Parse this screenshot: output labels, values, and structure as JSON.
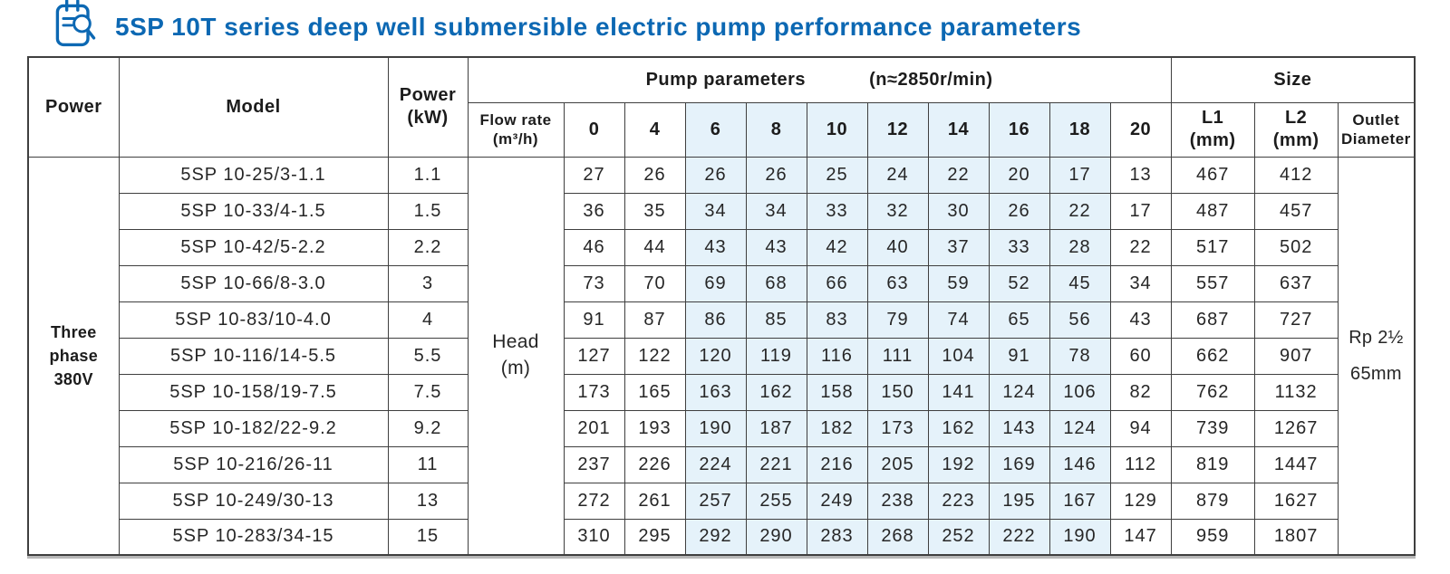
{
  "title": {
    "text": "5SP 10T series deep well submersible electric pump performance parameters",
    "icon": "clipboard-magnifier-icon"
  },
  "colors": {
    "accent_blue": "#0c68b3",
    "shaded_cell": "#e5f2fa",
    "border": "#3f3f3f"
  },
  "table": {
    "header": {
      "power": "Power",
      "model": "Model",
      "power_kw": [
        "Power",
        "(kW)"
      ],
      "pump_params_label": "Pump parameters",
      "pump_params_speed": "(n≈2850r/min)",
      "size": "Size",
      "flow_rate": [
        "Flow rate",
        "(m³/h)"
      ],
      "flow_values": [
        "0",
        "4",
        "6",
        "8",
        "10",
        "12",
        "14",
        "16",
        "18",
        "20"
      ],
      "l1": [
        "L1",
        "(mm)"
      ],
      "l2": [
        "L2",
        "(mm)"
      ],
      "outlet": [
        "Outlet",
        "Diameter"
      ]
    },
    "shaded_flow_indices": [
      2,
      3,
      4,
      5,
      6,
      7,
      8
    ],
    "merged_cells": {
      "power_supply": "Three\nphase\n380V",
      "head_unit": "Head\n(m)",
      "outlet_diameter": "Rp 2½\n65mm"
    },
    "rows": [
      {
        "model": "5SP 10-25/3-1.1",
        "power_kw": "1.1",
        "heads": [
          "27",
          "26",
          "26",
          "26",
          "25",
          "24",
          "22",
          "20",
          "17",
          "13"
        ],
        "l1": "467",
        "l2": "412"
      },
      {
        "model": "5SP 10-33/4-1.5",
        "power_kw": "1.5",
        "heads": [
          "36",
          "35",
          "34",
          "34",
          "33",
          "32",
          "30",
          "26",
          "22",
          "17"
        ],
        "l1": "487",
        "l2": "457"
      },
      {
        "model": "5SP 10-42/5-2.2",
        "power_kw": "2.2",
        "heads": [
          "46",
          "44",
          "43",
          "43",
          "42",
          "40",
          "37",
          "33",
          "28",
          "22"
        ],
        "l1": "517",
        "l2": "502"
      },
      {
        "model": "5SP 10-66/8-3.0",
        "power_kw": "3",
        "heads": [
          "73",
          "70",
          "69",
          "68",
          "66",
          "63",
          "59",
          "52",
          "45",
          "34"
        ],
        "l1": "557",
        "l2": "637"
      },
      {
        "model": "5SP 10-83/10-4.0",
        "power_kw": "4",
        "heads": [
          "91",
          "87",
          "86",
          "85",
          "83",
          "79",
          "74",
          "65",
          "56",
          "43"
        ],
        "l1": "687",
        "l2": "727"
      },
      {
        "model": "5SP 10-116/14-5.5",
        "power_kw": "5.5",
        "heads": [
          "127",
          "122",
          "120",
          "119",
          "116",
          "111",
          "104",
          "91",
          "78",
          "60"
        ],
        "l1": "662",
        "l2": "907"
      },
      {
        "model": "5SP 10-158/19-7.5",
        "power_kw": "7.5",
        "heads": [
          "173",
          "165",
          "163",
          "162",
          "158",
          "150",
          "141",
          "124",
          "106",
          "82"
        ],
        "l1": "762",
        "l2": "1132"
      },
      {
        "model": "5SP 10-182/22-9.2",
        "power_kw": "9.2",
        "heads": [
          "201",
          "193",
          "190",
          "187",
          "182",
          "173",
          "162",
          "143",
          "124",
          "94"
        ],
        "l1": "739",
        "l2": "1267"
      },
      {
        "model": "5SP 10-216/26-11",
        "power_kw": "11",
        "heads": [
          "237",
          "226",
          "224",
          "221",
          "216",
          "205",
          "192",
          "169",
          "146",
          "112"
        ],
        "l1": "819",
        "l2": "1447"
      },
      {
        "model": "5SP 10-249/30-13",
        "power_kw": "13",
        "heads": [
          "272",
          "261",
          "257",
          "255",
          "249",
          "238",
          "223",
          "195",
          "167",
          "129"
        ],
        "l1": "879",
        "l2": "1627"
      },
      {
        "model": "5SP 10-283/34-15",
        "power_kw": "15",
        "heads": [
          "310",
          "295",
          "292",
          "290",
          "283",
          "268",
          "252",
          "222",
          "190",
          "147"
        ],
        "l1": "959",
        "l2": "1807"
      }
    ]
  }
}
